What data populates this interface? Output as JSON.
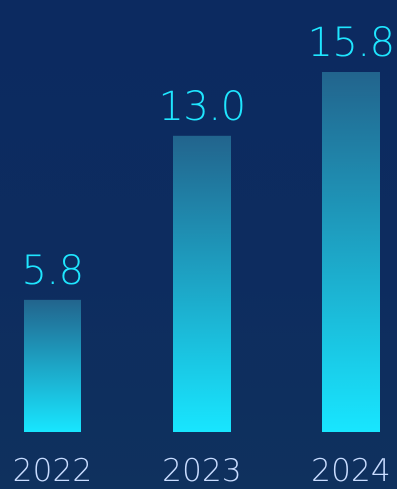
{
  "chart_data": {
    "type": "bar",
    "categories": [
      "2022",
      "2023",
      "2024"
    ],
    "values": [
      5.8,
      13.0,
      15.8
    ],
    "value_labels": [
      "5.8",
      "13.0",
      "15.8"
    ],
    "title": "",
    "xlabel": "",
    "ylabel": "",
    "ylim": [
      0,
      15.8
    ],
    "grid": false,
    "legend": "none",
    "colors": {
      "background_top": "#0c2a60",
      "background_bottom": "#0f315e",
      "bar_top": "#22648d",
      "bar_bottom": "#18e6ff",
      "value_label": "#1fe6ff",
      "tick_label": "#c9dcff"
    }
  }
}
